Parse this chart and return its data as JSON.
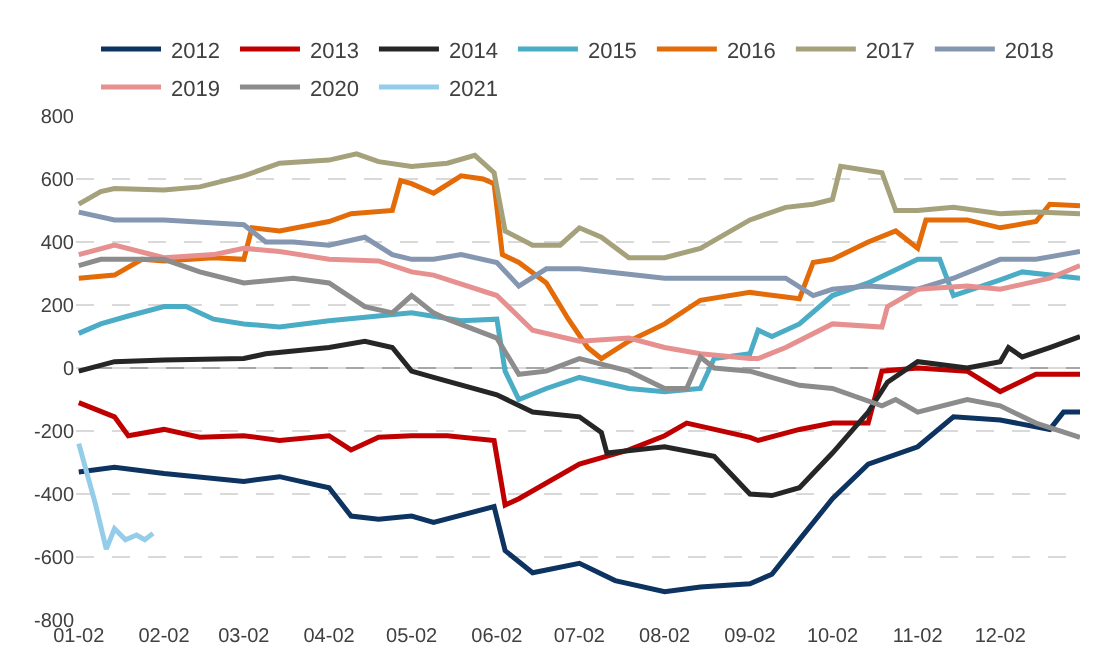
{
  "chart_data": {
    "type": "line",
    "legend": "top",
    "grid": "y",
    "marker": "none",
    "line_style": "solid",
    "xlim": [
      "--01-01",
      "--12-31"
    ],
    "xticks": [
      {
        "value": "--01-02",
        "label": "01-02"
      },
      {
        "value": "--02-02",
        "label": "02-02"
      },
      {
        "value": "--03-02",
        "label": "03-02"
      },
      {
        "value": "--04-02",
        "label": "04-02"
      },
      {
        "value": "--05-02",
        "label": "05-02"
      },
      {
        "value": "--06-02",
        "label": "06-02"
      },
      {
        "value": "--07-02",
        "label": "07-02"
      },
      {
        "value": "--08-02",
        "label": "08-02"
      },
      {
        "value": "--09-02",
        "label": "09-02"
      },
      {
        "value": "--10-02",
        "label": "10-02"
      },
      {
        "value": "--11-02",
        "label": "11-02"
      },
      {
        "value": "--12-02",
        "label": "12-02"
      }
    ],
    "ylim": [
      -800,
      800
    ],
    "yticks": [
      -800,
      -600,
      -400,
      -200,
      0,
      200,
      400,
      600,
      800
    ],
    "ref_lines": [
      {
        "axis": "y",
        "value": 0,
        "color": "#a6a6a6"
      }
    ],
    "series": [
      {
        "name": "2012",
        "color": "#0d3360",
        "x": [
          "--01-02",
          "--01-15",
          "--02-02",
          "--03-02",
          "--03-15",
          "--04-02",
          "--04-10",
          "--04-20",
          "--05-02",
          "--05-10",
          "--06-01",
          "--06-05",
          "--06-15",
          "--07-02",
          "--07-15",
          "--08-02",
          "--08-15",
          "--09-02",
          "--09-10",
          "--09-20",
          "--10-02",
          "--10-15",
          "--11-02",
          "--11-15",
          "--12-02",
          "--12-20",
          "--12-25",
          "--12-31"
        ],
        "values": [
          -330,
          -315,
          -335,
          -360,
          -345,
          -380,
          -470,
          -480,
          -470,
          -490,
          -440,
          -580,
          -650,
          -620,
          -675,
          -710,
          -695,
          -685,
          -655,
          -545,
          -415,
          -305,
          -250,
          -155,
          -165,
          -195,
          -140,
          -140
        ]
      },
      {
        "name": "2013",
        "color": "#c00000",
        "x": [
          "--01-02",
          "--01-15",
          "--01-20",
          "--02-02",
          "--02-15",
          "--03-02",
          "--03-15",
          "--04-02",
          "--04-10",
          "--04-20",
          "--05-02",
          "--05-15",
          "--06-01",
          "--06-05",
          "--06-10",
          "--07-02",
          "--07-20",
          "--08-02",
          "--08-10",
          "--09-02",
          "--09-05",
          "--09-20",
          "--10-02",
          "--10-15",
          "--10-20",
          "--11-02",
          "--11-20",
          "--12-02",
          "--12-15",
          "--12-31"
        ],
        "values": [
          -110,
          -155,
          -215,
          -195,
          -220,
          -215,
          -230,
          -215,
          -260,
          -220,
          -215,
          -215,
          -230,
          -435,
          -415,
          -305,
          -260,
          -215,
          -175,
          -220,
          -230,
          -195,
          -175,
          -175,
          -10,
          0,
          -10,
          -75,
          -20,
          -20
        ]
      },
      {
        "name": "2014",
        "color": "#262626",
        "x": [
          "--01-02",
          "--01-15",
          "--02-02",
          "--03-02",
          "--03-10",
          "--04-02",
          "--04-15",
          "--04-25",
          "--05-02",
          "--05-10",
          "--06-02",
          "--06-15",
          "--07-02",
          "--07-10",
          "--07-12",
          "--08-02",
          "--08-20",
          "--09-02",
          "--09-10",
          "--09-20",
          "--10-02",
          "--10-15",
          "--10-22",
          "--11-02",
          "--11-20",
          "--12-02",
          "--12-05",
          "--12-10",
          "--12-20",
          "--12-31"
        ],
        "values": [
          -10,
          20,
          25,
          30,
          45,
          65,
          85,
          65,
          -10,
          -30,
          -85,
          -140,
          -155,
          -205,
          -270,
          -250,
          -280,
          -400,
          -405,
          -380,
          -270,
          -140,
          -45,
          20,
          0,
          20,
          65,
          35,
          65,
          100
        ]
      },
      {
        "name": "2015",
        "color": "#4bacc6",
        "x": [
          "--01-02",
          "--01-10",
          "--01-20",
          "--02-02",
          "--02-10",
          "--02-20",
          "--03-02",
          "--03-15",
          "--04-02",
          "--05-02",
          "--05-20",
          "--06-02",
          "--06-05",
          "--06-10",
          "--06-20",
          "--07-02",
          "--07-20",
          "--08-02",
          "--08-15",
          "--08-20",
          "--09-02",
          "--09-05",
          "--09-10",
          "--09-20",
          "--10-02",
          "--10-15",
          "--11-02",
          "--11-10",
          "--11-15",
          "--12-02",
          "--12-10",
          "--12-31"
        ],
        "values": [
          110,
          140,
          165,
          195,
          195,
          155,
          140,
          130,
          150,
          175,
          150,
          155,
          -10,
          -100,
          -65,
          -30,
          -65,
          -75,
          -65,
          30,
          45,
          120,
          100,
          140,
          230,
          270,
          345,
          345,
          230,
          280,
          305,
          285
        ]
      },
      {
        "name": "2016",
        "color": "#e36c09",
        "x": [
          "--01-02",
          "--01-15",
          "--01-25",
          "--02-02",
          "--02-20",
          "--03-02",
          "--03-05",
          "--03-15",
          "--04-02",
          "--04-10",
          "--04-25",
          "--04-28",
          "--05-02",
          "--05-10",
          "--05-20",
          "--05-28",
          "--06-01",
          "--06-04",
          "--06-10",
          "--06-20",
          "--06-28",
          "--07-05",
          "--07-10",
          "--07-20",
          "--08-02",
          "--08-15",
          "--09-02",
          "--09-20",
          "--09-25",
          "--10-02",
          "--10-15",
          "--10-25",
          "--11-02",
          "--11-05",
          "--11-20",
          "--12-02",
          "--12-15",
          "--12-20",
          "--12-31"
        ],
        "values": [
          285,
          295,
          345,
          340,
          350,
          345,
          445,
          435,
          465,
          490,
          500,
          595,
          585,
          555,
          610,
          600,
          585,
          360,
          335,
          270,
          155,
          65,
          30,
          85,
          140,
          215,
          240,
          220,
          335,
          345,
          400,
          435,
          380,
          470,
          470,
          445,
          465,
          520,
          515
        ]
      },
      {
        "name": "2017",
        "color": "#a5a17b",
        "x": [
          "--01-02",
          "--01-10",
          "--01-15",
          "--02-02",
          "--02-15",
          "--03-02",
          "--03-15",
          "--04-02",
          "--04-12",
          "--04-20",
          "--05-02",
          "--05-15",
          "--05-25",
          "--06-01",
          "--06-05",
          "--06-15",
          "--06-25",
          "--07-02",
          "--07-10",
          "--07-20",
          "--08-02",
          "--08-15",
          "--09-02",
          "--09-15",
          "--09-25",
          "--10-02",
          "--10-05",
          "--10-20",
          "--10-25",
          "--11-02",
          "--11-15",
          "--12-02",
          "--12-15",
          "--12-31"
        ],
        "values": [
          520,
          560,
          570,
          565,
          575,
          610,
          650,
          660,
          680,
          655,
          640,
          650,
          675,
          620,
          435,
          390,
          390,
          445,
          415,
          350,
          350,
          380,
          470,
          510,
          520,
          535,
          640,
          620,
          500,
          500,
          510,
          490,
          495,
          490
        ]
      },
      {
        "name": "2018",
        "color": "#8496b0",
        "x": [
          "--01-02",
          "--01-15",
          "--02-02",
          "--03-02",
          "--03-10",
          "--03-20",
          "--04-02",
          "--04-15",
          "--04-25",
          "--05-02",
          "--05-10",
          "--05-20",
          "--06-02",
          "--06-10",
          "--06-20",
          "--07-02",
          "--08-02",
          "--09-02",
          "--09-15",
          "--09-25",
          "--10-02",
          "--10-15",
          "--11-02",
          "--11-15",
          "--12-02",
          "--12-15",
          "--12-31"
        ],
        "values": [
          495,
          470,
          470,
          455,
          400,
          400,
          390,
          415,
          360,
          345,
          345,
          360,
          335,
          260,
          315,
          315,
          285,
          285,
          285,
          230,
          250,
          260,
          250,
          285,
          345,
          345,
          370
        ]
      },
      {
        "name": "2019",
        "color": "#e6918f",
        "x": [
          "--01-02",
          "--01-15",
          "--02-02",
          "--02-20",
          "--03-02",
          "--03-15",
          "--04-02",
          "--04-20",
          "--05-02",
          "--05-10",
          "--06-02",
          "--06-15",
          "--07-02",
          "--07-20",
          "--08-02",
          "--08-15",
          "--09-02",
          "--09-05",
          "--09-15",
          "--10-02",
          "--10-20",
          "--10-22",
          "--11-02",
          "--11-20",
          "--12-02",
          "--12-20",
          "--12-31"
        ],
        "values": [
          360,
          390,
          350,
          360,
          380,
          370,
          345,
          340,
          305,
          295,
          230,
          120,
          85,
          95,
          65,
          45,
          30,
          30,
          65,
          140,
          130,
          195,
          250,
          260,
          250,
          285,
          325
        ]
      },
      {
        "name": "2020",
        "color": "#8c8c8c",
        "x": [
          "--01-02",
          "--01-10",
          "--02-02",
          "--02-15",
          "--03-02",
          "--03-20",
          "--04-02",
          "--04-15",
          "--04-25",
          "--05-02",
          "--05-10",
          "--05-15",
          "--06-02",
          "--06-10",
          "--06-20",
          "--07-02",
          "--07-20",
          "--08-02",
          "--08-10",
          "--08-15",
          "--08-20",
          "--09-02",
          "--09-20",
          "--10-02",
          "--10-20",
          "--10-25",
          "--11-02",
          "--11-20",
          "--12-02",
          "--12-15",
          "--12-31"
        ],
        "values": [
          325,
          345,
          345,
          305,
          270,
          285,
          270,
          195,
          175,
          230,
          175,
          155,
          95,
          -20,
          -10,
          30,
          -10,
          -65,
          -65,
          35,
          0,
          -10,
          -55,
          -65,
          -120,
          -100,
          -140,
          -100,
          -120,
          -175,
          -220
        ]
      },
      {
        "name": "2021",
        "color": "#93cdea",
        "x": [
          "--01-02",
          "--01-08",
          "--01-12",
          "--01-15",
          "--01-19",
          "--01-23",
          "--01-26",
          "--01-29"
        ],
        "values": [
          -240,
          -430,
          -575,
          -510,
          -545,
          -530,
          -545,
          -525
        ]
      }
    ]
  }
}
